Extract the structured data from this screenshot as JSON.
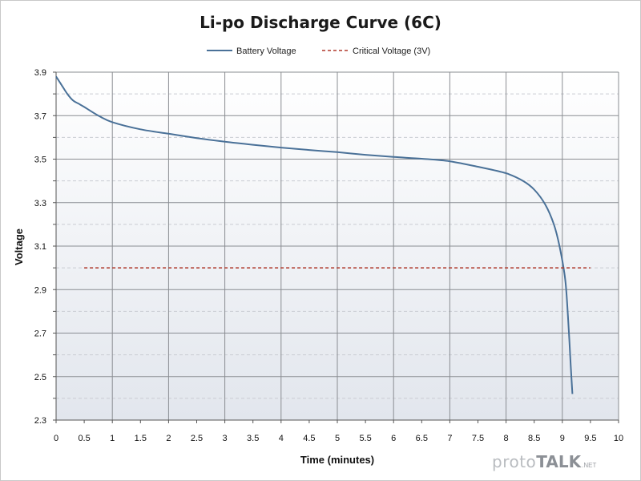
{
  "chart_data": {
    "type": "line",
    "title": "Li-po Discharge Curve (6C)",
    "xlabel": "Time (minutes)",
    "ylabel": "Voltage",
    "xlim": [
      0,
      10
    ],
    "ylim": [
      2.3,
      3.9
    ],
    "x_ticks": [
      "0",
      "0.5",
      "1",
      "1.5",
      "2",
      "2.5",
      "3",
      "3.5",
      "4",
      "4.5",
      "5",
      "5.5",
      "6",
      "6.5",
      "7",
      "7.5",
      "8",
      "8.5",
      "9",
      "9.5",
      "10"
    ],
    "y_ticks": [
      "2.3",
      "2.5",
      "2.7",
      "2.9",
      "3.1",
      "3.3",
      "3.5",
      "3.7",
      "3.9"
    ],
    "grid": true,
    "legend_position": "top-center",
    "series": [
      {
        "name": "Battery Voltage",
        "color": "#4a7198",
        "style": "solid",
        "points": [
          [
            0,
            3.88
          ],
          [
            0.1,
            3.84
          ],
          [
            0.2,
            3.8
          ],
          [
            0.3,
            3.77
          ],
          [
            0.4,
            3.755
          ],
          [
            0.5,
            3.74
          ],
          [
            0.75,
            3.7
          ],
          [
            1.0,
            3.67
          ],
          [
            1.5,
            3.637
          ],
          [
            2.0,
            3.617
          ],
          [
            2.5,
            3.597
          ],
          [
            3.0,
            3.58
          ],
          [
            3.5,
            3.566
          ],
          [
            4.0,
            3.553
          ],
          [
            4.5,
            3.542
          ],
          [
            5.0,
            3.532
          ],
          [
            5.5,
            3.52
          ],
          [
            6.0,
            3.51
          ],
          [
            6.5,
            3.502
          ],
          [
            7.0,
            3.49
          ],
          [
            7.5,
            3.465
          ],
          [
            8.0,
            3.435
          ],
          [
            8.3,
            3.4
          ],
          [
            8.5,
            3.36
          ],
          [
            8.7,
            3.29
          ],
          [
            8.85,
            3.2
          ],
          [
            8.95,
            3.1
          ],
          [
            9.05,
            2.95
          ],
          [
            9.1,
            2.78
          ],
          [
            9.15,
            2.55
          ],
          [
            9.18,
            2.42
          ]
        ]
      },
      {
        "name": "Critical Voltage  (3V)",
        "color": "#b0392b",
        "style": "dashed",
        "points": [
          [
            0.5,
            3.0
          ],
          [
            9.5,
            3.0
          ]
        ]
      }
    ]
  },
  "watermark": {
    "part1": "proto",
    "part2": "TALK",
    "part3": ".NET"
  }
}
